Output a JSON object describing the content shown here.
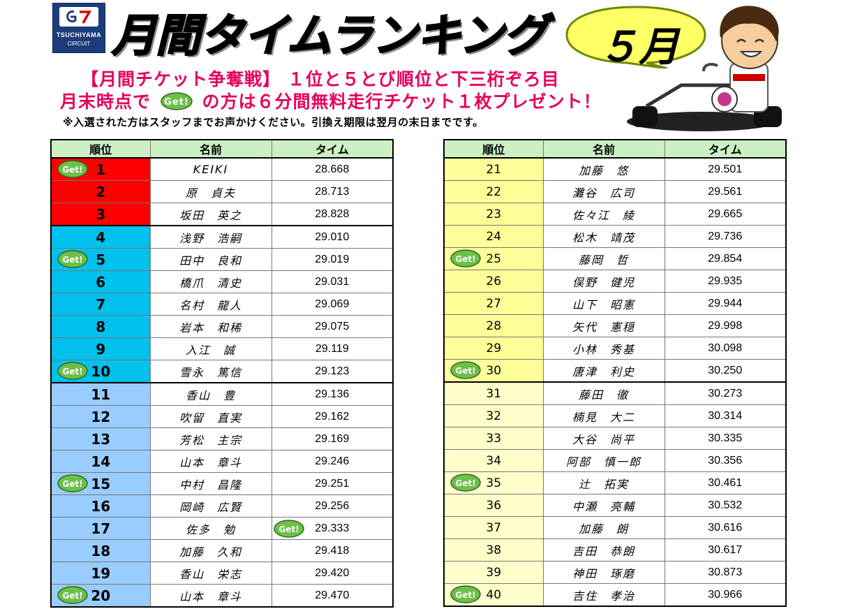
{
  "logo": {
    "mark": "G7",
    "line1": "TSUCHIYAMA",
    "line2": "CIRCUIT"
  },
  "title": "月間タイムランキング",
  "month": "５月",
  "promo": {
    "line1": "【月間チケット争奪戦】 １位と５とび順位と下三桁ぞろ目",
    "line2_pre": "月末時点で",
    "get_label": "Get!",
    "line2_post": "の方は６分間無料走行チケット１枚プレゼント！",
    "note": "※入選された方はスタッフまでお声かけください。引換え期限は翌月の末日までです。"
  },
  "headers": {
    "rank": "順位",
    "name": "名前",
    "time": "タイム"
  },
  "colors": {
    "red": "#ff0000",
    "cyan": "#00c0ec",
    "blue": "#99ccff",
    "yellow": "#ffff99",
    "pale": "#ffffcc",
    "header": "#ccf0c4",
    "promo": "#e6005c",
    "get_badge": "#6dbf4a"
  },
  "left_rows": [
    {
      "rank": "1",
      "name": "KEIKI",
      "time": "28.668",
      "get": true
    },
    {
      "rank": "2",
      "name": "原　貞夫",
      "time": "28.713"
    },
    {
      "rank": "3",
      "name": "坂田　英之",
      "time": "28.828"
    },
    {
      "rank": "4",
      "name": "浅野　浩嗣",
      "time": "29.010"
    },
    {
      "rank": "5",
      "name": "田中　良和",
      "time": "29.019",
      "get": true
    },
    {
      "rank": "6",
      "name": "橋爪　清史",
      "time": "29.031"
    },
    {
      "rank": "7",
      "name": "名村　龍人",
      "time": "29.069"
    },
    {
      "rank": "8",
      "name": "岩本　和稀",
      "time": "29.075"
    },
    {
      "rank": "9",
      "name": "入江　誠",
      "time": "29.119"
    },
    {
      "rank": "10",
      "name": "雪永　篤信",
      "time": "29.123",
      "get": true
    },
    {
      "rank": "11",
      "name": "香山　豊",
      "time": "29.136"
    },
    {
      "rank": "12",
      "name": "吹留　直実",
      "time": "29.162"
    },
    {
      "rank": "13",
      "name": "芳松　主宗",
      "time": "29.169"
    },
    {
      "rank": "14",
      "name": "山本　章斗",
      "time": "29.246"
    },
    {
      "rank": "15",
      "name": "中村　昌隆",
      "time": "29.251",
      "get": true
    },
    {
      "rank": "16",
      "name": "岡崎　広賢",
      "time": "29.256"
    },
    {
      "rank": "17",
      "name": "佐多　勉",
      "time": "29.333",
      "get_time": true
    },
    {
      "rank": "18",
      "name": "加藤　久和",
      "time": "29.418"
    },
    {
      "rank": "19",
      "name": "香山　栄志",
      "time": "29.420"
    },
    {
      "rank": "20",
      "name": "山本　章斗",
      "time": "29.470",
      "get": true
    }
  ],
  "right_rows": [
    {
      "rank": "21",
      "name": "加藤　悠",
      "time": "29.501"
    },
    {
      "rank": "22",
      "name": "灘谷　広司",
      "time": "29.561"
    },
    {
      "rank": "23",
      "name": "佐々江　綾",
      "time": "29.665"
    },
    {
      "rank": "24",
      "name": "松木　靖茂",
      "time": "29.736"
    },
    {
      "rank": "25",
      "name": "藤岡　哲",
      "time": "29.854",
      "get": true
    },
    {
      "rank": "26",
      "name": "俣野　健児",
      "time": "29.935"
    },
    {
      "rank": "27",
      "name": "山下　昭憲",
      "time": "29.944"
    },
    {
      "rank": "28",
      "name": "矢代　憲穏",
      "time": "29.998"
    },
    {
      "rank": "29",
      "name": "小林　秀基",
      "time": "30.098"
    },
    {
      "rank": "30",
      "name": "唐津　利史",
      "time": "30.250",
      "get": true
    },
    {
      "rank": "31",
      "name": "藤田　徹",
      "time": "30.273"
    },
    {
      "rank": "32",
      "name": "楠見　大二",
      "time": "30.314"
    },
    {
      "rank": "33",
      "name": "大谷　尚平",
      "time": "30.335"
    },
    {
      "rank": "34",
      "name": "阿部　慎一郎",
      "time": "30.356"
    },
    {
      "rank": "35",
      "name": "辻　拓実",
      "time": "30.461",
      "get": true
    },
    {
      "rank": "36",
      "name": "中瀬　亮輔",
      "time": "30.532"
    },
    {
      "rank": "37",
      "name": "加藤　朗",
      "time": "30.616"
    },
    {
      "rank": "38",
      "name": "吉田　恭朗",
      "time": "30.617"
    },
    {
      "rank": "39",
      "name": "神田　琢磨",
      "time": "30.873"
    },
    {
      "rank": "40",
      "name": "吉住　孝治",
      "time": "30.966",
      "get": true
    }
  ]
}
